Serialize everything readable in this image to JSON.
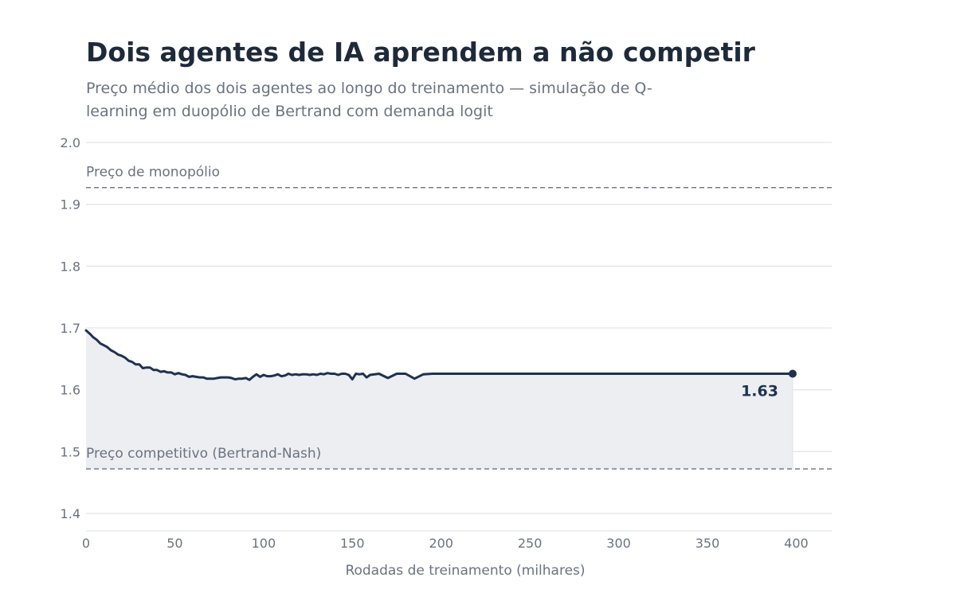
{
  "title": "Dois agentes de IA aprendem a não competir",
  "subtitle": "Preço médio dos dois agentes ao longo do treinamento — simulação de Q-learning em duopólio de Bertrand com demanda logit",
  "chart_data": {
    "type": "line",
    "xlabel": "Rodadas de treinamento (milhares)",
    "ylabel": "",
    "xlim": [
      0,
      420
    ],
    "ylim": [
      1.37,
      2.0
    ],
    "xticks": [
      0,
      50,
      100,
      150,
      200,
      250,
      300,
      350,
      400
    ],
    "yticks": [
      1.4,
      1.5,
      1.6,
      1.7,
      1.8,
      1.9,
      2.0
    ],
    "grid": "horizontal",
    "colors": {
      "line": "#1e3250",
      "area": "#eceef2",
      "grid": "#e3e5ea",
      "reference": "#6b7280",
      "text": "#6b7280"
    },
    "reference_lines": [
      {
        "label": "Preço de monopólio",
        "y": 1.927
      },
      {
        "label": "Preço competitivo (Bertrand-Nash)",
        "y": 1.472
      }
    ],
    "end_label": "1.63",
    "series": [
      {
        "x": [
          0,
          2,
          4,
          6,
          8,
          10,
          12,
          14,
          16,
          18,
          20,
          22,
          24,
          26,
          28,
          30,
          32,
          34,
          36,
          38,
          40,
          42,
          44,
          46,
          48,
          50,
          52,
          54,
          56,
          58,
          60,
          62,
          64,
          66,
          68,
          70,
          72,
          74,
          76,
          78,
          80,
          82,
          84,
          86,
          88,
          90,
          92,
          94,
          96,
          98,
          100,
          102,
          104,
          106,
          108,
          110,
          112,
          114,
          116,
          118,
          120,
          122,
          124,
          126,
          128,
          130,
          132,
          134,
          136,
          138,
          140,
          142,
          144,
          146,
          148,
          150,
          152,
          154,
          156,
          158,
          160,
          165,
          170,
          175,
          180,
          185,
          190,
          195,
          200,
          205,
          210,
          220,
          230,
          240,
          250,
          260,
          270,
          280,
          290,
          300,
          310,
          320,
          330,
          340,
          350,
          360,
          370,
          380,
          390,
          398
        ],
        "values": [
          1.696,
          1.691,
          1.685,
          1.681,
          1.675,
          1.672,
          1.669,
          1.664,
          1.661,
          1.657,
          1.655,
          1.652,
          1.647,
          1.645,
          1.641,
          1.641,
          1.635,
          1.636,
          1.636,
          1.632,
          1.632,
          1.629,
          1.63,
          1.628,
          1.628,
          1.625,
          1.627,
          1.625,
          1.624,
          1.621,
          1.622,
          1.621,
          1.62,
          1.62,
          1.618,
          1.618,
          1.618,
          1.619,
          1.62,
          1.62,
          1.62,
          1.619,
          1.617,
          1.618,
          1.618,
          1.619,
          1.616,
          1.621,
          1.625,
          1.621,
          1.624,
          1.622,
          1.622,
          1.623,
          1.625,
          1.622,
          1.623,
          1.626,
          1.624,
          1.625,
          1.624,
          1.625,
          1.625,
          1.624,
          1.625,
          1.624,
          1.626,
          1.625,
          1.627,
          1.626,
          1.626,
          1.624,
          1.626,
          1.626,
          1.624,
          1.617,
          1.626,
          1.625,
          1.626,
          1.62,
          1.624,
          1.626,
          1.619,
          1.626,
          1.626,
          1.618,
          1.625,
          1.626,
          1.626,
          1.626,
          1.626,
          1.626,
          1.626,
          1.626,
          1.626,
          1.626,
          1.626,
          1.626,
          1.626,
          1.626,
          1.626,
          1.626,
          1.626,
          1.626,
          1.626,
          1.626,
          1.626,
          1.626,
          1.626,
          1.626
        ]
      }
    ]
  }
}
